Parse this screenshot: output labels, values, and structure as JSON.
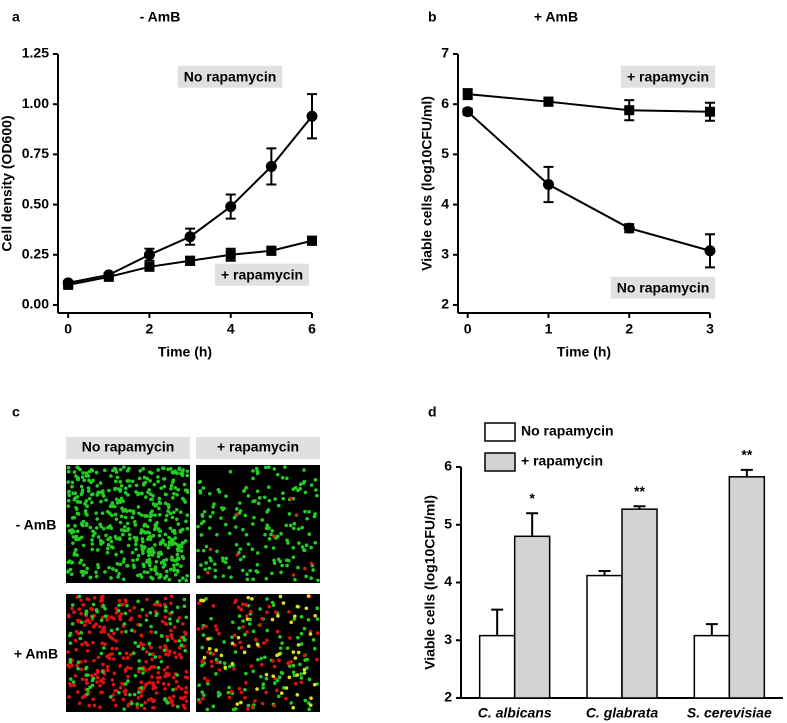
{
  "chart_data": [
    {
      "type": "line",
      "panel": "a",
      "title": "- AmB",
      "x_label": "Time (h)",
      "y_label": "Cell density (OD600)",
      "x": [
        0,
        1,
        2,
        3,
        4,
        5,
        6
      ],
      "xlim": [
        -0.25,
        6
      ],
      "xticks": [
        0,
        2,
        4,
        6
      ],
      "ylim": [
        -0.04,
        1.25
      ],
      "yticks": [
        {
          "value": 0,
          "label": "0.00"
        },
        {
          "value": 0.25,
          "label": "0.25"
        },
        {
          "value": 0.5,
          "label": "0.50"
        },
        {
          "value": 0.75,
          "label": "0.75"
        },
        {
          "value": 1,
          "label": "1.00"
        },
        {
          "value": 1.25,
          "label": "1.25"
        }
      ],
      "series": [
        {
          "name": "No rapamycin",
          "marker": "circle",
          "color": "#000000",
          "values": [
            0.11,
            0.15,
            0.25,
            0.34,
            0.49,
            0.69,
            0.94
          ],
          "errors": [
            0.01,
            0.01,
            0.03,
            0.04,
            0.06,
            0.09,
            0.11
          ]
        },
        {
          "name": "+ rapamycin",
          "marker": "square",
          "color": "#000000",
          "values": [
            0.1,
            0.14,
            0.19,
            0.22,
            0.25,
            0.27,
            0.32
          ],
          "errors": [
            0.01,
            0.01,
            0.01,
            0.02,
            0.03,
            0.02,
            0.02
          ]
        }
      ]
    },
    {
      "type": "line",
      "panel": "b",
      "title": "+ AmB",
      "x_label": "Time (h)",
      "y_label": "Viable cells (log10CFU/ml)",
      "x": [
        0,
        1,
        2,
        3
      ],
      "xlim": [
        -0.12,
        3
      ],
      "xticks": [
        0,
        1,
        2,
        3
      ],
      "ylim": [
        1.84,
        7
      ],
      "yticks": [
        2,
        3,
        4,
        5,
        6,
        7
      ],
      "series": [
        {
          "name": "No rapamycin",
          "marker": "circle",
          "color": "#000000",
          "values": [
            5.85,
            4.4,
            3.53,
            3.08
          ],
          "errors": [
            0.06,
            0.35,
            0.08,
            0.33
          ]
        },
        {
          "name": "+ rapamycin",
          "marker": "square",
          "color": "#000000",
          "values": [
            6.2,
            6.05,
            5.88,
            5.85
          ],
          "errors": [
            0.1,
            0.08,
            0.2,
            0.18
          ]
        }
      ]
    },
    {
      "type": "bar",
      "panel": "d",
      "y_label": "Viable cells (log10CFU/ml)",
      "categories": [
        "C. albicans",
        "C. glabrata",
        "S. cerevisiae"
      ],
      "ylim": [
        2,
        6
      ],
      "yticks": [
        2,
        3,
        4,
        5,
        6
      ],
      "legend": "top-left",
      "series": [
        {
          "name": "No rapamycin",
          "color": "#ffffff",
          "values": [
            3.08,
            4.12,
            3.08
          ],
          "errors": [
            0.45,
            0.08,
            0.2
          ]
        },
        {
          "name": "+ rapamycin",
          "color": "#d3d3d3",
          "values": [
            4.8,
            5.27,
            5.83
          ],
          "errors": [
            0.4,
            0.05,
            0.12
          ]
        }
      ],
      "significance": [
        "*",
        "**",
        "**"
      ]
    }
  ],
  "image_panel": {
    "panel": "c",
    "columns": [
      "No rapamycin",
      "+ rapamycin"
    ],
    "rows": [
      "- AmB",
      "+ AmB"
    ]
  }
}
